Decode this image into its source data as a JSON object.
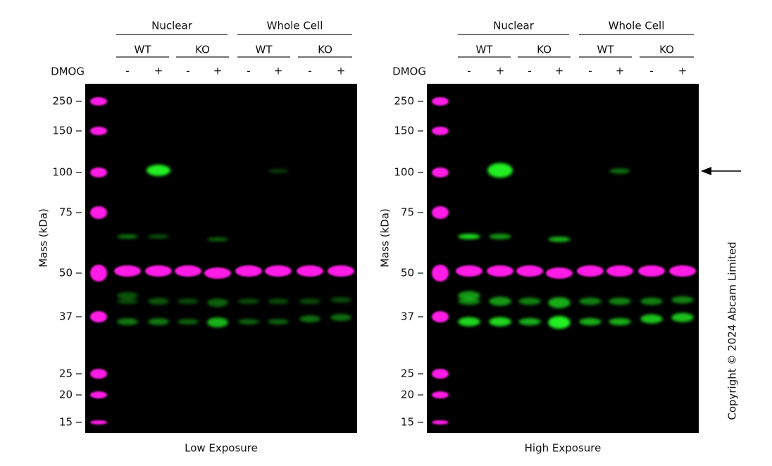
{
  "panels": [
    {
      "groups": [
        "Nuclear",
        "Whole Cell"
      ],
      "genotypes": [
        "WT",
        "KO",
        "WT",
        "KO"
      ],
      "treatment_label": "DMOG",
      "treatments": [
        "-",
        "+",
        "-",
        "+",
        "-",
        "+",
        "-",
        "+"
      ],
      "markers": [
        250,
        150,
        100,
        75,
        50,
        37,
        25,
        20,
        15
      ],
      "y_label": "Mass (kDa)",
      "caption": "Low Exposure"
    },
    {
      "groups": [
        "Nuclear",
        "Whole Cell"
      ],
      "genotypes": [
        "WT",
        "KO",
        "WT",
        "KO"
      ],
      "treatment_label": "DMOG",
      "treatments": [
        "-",
        "+",
        "-",
        "+",
        "-",
        "+",
        "-",
        "+"
      ],
      "markers": [
        250,
        150,
        100,
        75,
        50,
        37,
        25,
        20,
        15
      ],
      "y_label": "Mass (kDa)",
      "caption": "High Exposure"
    }
  ],
  "copyright": "Copyright © 2024 Abcam Limited"
}
